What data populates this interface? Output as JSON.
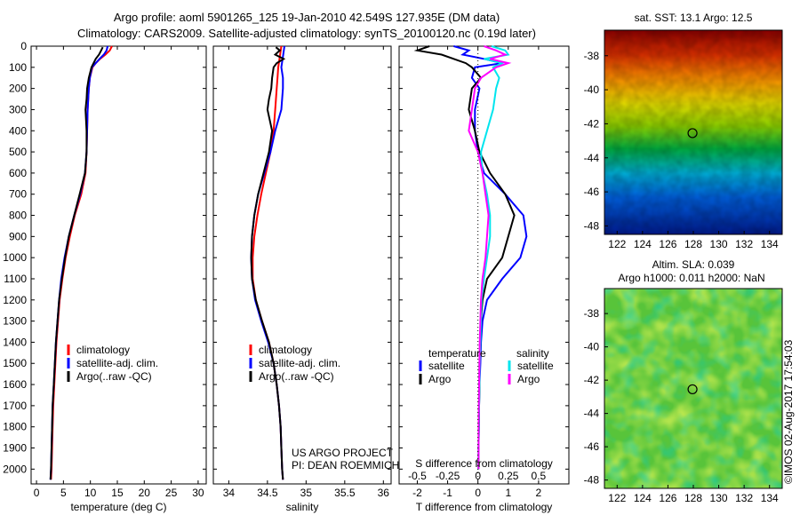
{
  "header": {
    "line1": "Argo profile: aoml 5901265_125 19-Jan-2010 42.549S 127.935E (DM data)",
    "line2": "Climatology: CARS2009. Satellite-adjusted climatology: synTS_20100120.nc (0.19d later)"
  },
  "credit": "©IMOS 02-Aug-2017 17:54:03",
  "colors": {
    "climatology": "#ff0000",
    "satellite": "#0000ff",
    "argo": "#000000",
    "salinity_satellite": "#00e5ee",
    "salinity_argo": "#ff00ff"
  },
  "chart_data": [
    {
      "id": "temperature",
      "type": "line",
      "xlabel": "temperature (deg C)",
      "ylabel": "",
      "xlim": [
        -1,
        31.5
      ],
      "ylim": [
        2070,
        0
      ],
      "xticks": [
        "0",
        "5",
        "10",
        "15",
        "20",
        "25",
        "30"
      ],
      "yticks": [
        "0",
        "100",
        "200",
        "300",
        "400",
        "500",
        "600",
        "700",
        "800",
        "900",
        "1000",
        "1100",
        "1200",
        "1300",
        "1400",
        "1500",
        "1600",
        "1700",
        "1800",
        "1900",
        "2000"
      ],
      "legend": [
        "climatology",
        "satellite-adj. clim.",
        "Argo(..raw -QC)"
      ],
      "legend_position": "lower-center",
      "series": [
        {
          "name": "climatology",
          "color": "#ff0000",
          "depth": [
            0,
            20,
            40,
            60,
            80,
            100,
            150,
            200,
            300,
            400,
            500,
            600,
            700,
            800,
            900,
            1000,
            1100,
            1200,
            1300,
            1400,
            1500,
            1600,
            1700,
            1800,
            1900,
            2000,
            2050
          ],
          "values": [
            14.0,
            13.6,
            12.8,
            11.8,
            11.0,
            10.4,
            9.9,
            9.7,
            9.5,
            9.4,
            9.3,
            9.1,
            8.3,
            7.1,
            6.2,
            5.4,
            4.8,
            4.3,
            4.0,
            3.7,
            3.5,
            3.3,
            3.1,
            3.0,
            2.9,
            2.8,
            2.7
          ]
        },
        {
          "name": "satellite-adj. clim.",
          "color": "#0000ff",
          "depth": [
            0,
            20,
            40,
            60,
            80,
            100,
            150,
            200,
            300,
            400,
            500,
            600,
            700,
            800,
            900,
            1000,
            1100,
            1200,
            1300,
            1400,
            1500,
            1600,
            1700,
            1800,
            1900,
            2000,
            2050
          ],
          "values": [
            13.2,
            13.0,
            12.5,
            11.7,
            11.0,
            10.3,
            9.9,
            9.7,
            9.5,
            9.4,
            9.3,
            9.0,
            8.1,
            7.0,
            6.0,
            5.2,
            4.6,
            4.2,
            3.9,
            3.6,
            3.4,
            3.2,
            3.0,
            2.9,
            2.8,
            2.7,
            2.6
          ]
        },
        {
          "name": "Argo(..raw -QC)",
          "color": "#000000",
          "depth": [
            5,
            20,
            40,
            60,
            80,
            100,
            150,
            200,
            250,
            300,
            400,
            500,
            600,
            700,
            800,
            900,
            1000,
            1100,
            1200,
            1300,
            1400,
            1500,
            1600,
            1700,
            1800,
            1900,
            2000,
            2050
          ],
          "values": [
            12.3,
            12.0,
            11.6,
            11.0,
            10.6,
            10.2,
            9.7,
            9.4,
            9.3,
            9.1,
            9.3,
            9.3,
            9.0,
            8.0,
            7.0,
            6.0,
            5.3,
            4.7,
            4.2,
            3.9,
            3.6,
            3.4,
            3.2,
            3.0,
            2.9,
            2.8,
            2.7,
            2.6
          ]
        }
      ]
    },
    {
      "id": "salinity",
      "type": "line",
      "xlabel": "salinity",
      "xlim": [
        33.8,
        36.1
      ],
      "ylim": [
        2070,
        0
      ],
      "xticks": [
        "34",
        "34.5",
        "35",
        "35.5",
        "36"
      ],
      "legend": [
        "climatology",
        "satellite-adj. clim.",
        "Argo(..raw -QC)"
      ],
      "legend_position": "lower-center",
      "annotation": [
        "US ARGO PROJECT",
        "PI: DEAN ROEMMICH"
      ],
      "series": [
        {
          "name": "climatology",
          "color": "#ff0000",
          "depth": [
            0,
            50,
            100,
            150,
            200,
            300,
            400,
            500,
            600,
            700,
            800,
            900,
            1000,
            1100,
            1200,
            1300,
            1400,
            1500,
            1600,
            1700,
            1800,
            1900,
            2000,
            2050
          ],
          "values": [
            34.68,
            34.66,
            34.64,
            34.63,
            34.62,
            34.6,
            34.58,
            34.54,
            34.48,
            34.42,
            34.37,
            34.33,
            34.31,
            34.31,
            34.35,
            34.43,
            34.52,
            34.58,
            34.62,
            34.65,
            34.67,
            34.68,
            34.69,
            34.7
          ]
        },
        {
          "name": "satellite-adj. clim.",
          "color": "#0000ff",
          "depth": [
            0,
            50,
            100,
            150,
            200,
            300,
            400,
            500,
            600,
            700,
            800,
            900,
            1000,
            1100,
            1200,
            1300,
            1400,
            1500,
            1600,
            1700,
            1800,
            1900,
            2000,
            2050
          ],
          "values": [
            34.72,
            34.7,
            34.68,
            34.7,
            34.7,
            34.68,
            34.6,
            34.54,
            34.46,
            34.38,
            34.33,
            34.3,
            34.29,
            34.3,
            34.34,
            34.42,
            34.51,
            34.58,
            34.62,
            34.65,
            34.67,
            34.68,
            34.69,
            34.7
          ]
        },
        {
          "name": "Argo(..raw -QC)",
          "color": "#000000",
          "depth": [
            5,
            20,
            40,
            60,
            80,
            100,
            150,
            200,
            250,
            300,
            400,
            500,
            600,
            700,
            800,
            900,
            1000,
            1100,
            1200,
            1300,
            1400,
            1500,
            1600,
            1700,
            1800,
            1900,
            2000,
            2050
          ],
          "values": [
            34.61,
            34.66,
            34.6,
            34.71,
            34.62,
            34.58,
            34.56,
            34.55,
            34.52,
            34.5,
            34.56,
            34.52,
            34.45,
            34.38,
            34.33,
            34.3,
            34.29,
            34.3,
            34.35,
            34.43,
            34.52,
            34.58,
            34.62,
            34.65,
            34.67,
            34.68,
            34.69,
            34.7
          ]
        }
      ]
    },
    {
      "id": "difference",
      "type": "line",
      "xlabel": "T difference from climatology",
      "xlabel_top": "S difference from climatology",
      "xlim": [
        -2.6,
        3.0
      ],
      "ylim": [
        2070,
        0
      ],
      "xticks": [
        "-2",
        "-1",
        "0",
        "1",
        "2"
      ],
      "s_ticks": [
        "-0.5",
        "-0.25",
        "0",
        "0.25",
        "0.5"
      ],
      "legend_temperature": [
        "temperature",
        "satellite",
        "Argo"
      ],
      "legend_salinity": [
        "salinity",
        "satellite",
        "Argo"
      ],
      "series": [
        {
          "name": "temperature satellite",
          "color": "#0000ff",
          "depth": [
            0,
            20,
            40,
            60,
            80,
            100,
            150,
            200,
            300,
            400,
            500,
            600,
            700,
            800,
            900,
            1000,
            1100,
            1200,
            1300,
            1400,
            1500,
            1600,
            1700,
            1800,
            1900,
            2000
          ],
          "values": [
            -0.8,
            -0.3,
            -0.5,
            0.2,
            0.8,
            -0.1,
            -0.2,
            0.05,
            -0.1,
            -0.1,
            0,
            0.2,
            0.9,
            1.5,
            1.6,
            1.4,
            0.8,
            0.3,
            0.15,
            0.1,
            0.08,
            0.05,
            0.04,
            0.03,
            0.02,
            0.02
          ]
        },
        {
          "name": "temperature Argo",
          "color": "#000000",
          "depth": [
            0,
            20,
            40,
            60,
            80,
            100,
            150,
            200,
            300,
            400,
            500,
            600,
            700,
            800,
            900,
            1000,
            1100,
            1200,
            1300,
            1400,
            1500,
            1600,
            1700,
            1800,
            1900,
            2000
          ],
          "values": [
            -1.6,
            -2.0,
            -1.2,
            -0.8,
            -0.4,
            -0.2,
            0.1,
            -0.2,
            -0.3,
            -0.1,
            0.05,
            0.4,
            0.9,
            1.2,
            1.0,
            0.8,
            0.3,
            0.15,
            0.1,
            0.08,
            0.05,
            0.05,
            0.04,
            0.03,
            0.02,
            0.02
          ]
        },
        {
          "name": "salinity satellite",
          "color": "#00e5ee",
          "depth": [
            0,
            20,
            40,
            60,
            80,
            100,
            150,
            200,
            300,
            400,
            500,
            600,
            700,
            800,
            900,
            1000,
            1100,
            1200,
            1300,
            1400,
            1500,
            1600,
            1700,
            1800,
            1900,
            2000
          ],
          "values": [
            0.45,
            0.9,
            1.0,
            0.2,
            0.8,
            0.5,
            0.7,
            0.6,
            0.5,
            0.3,
            0.1,
            0.15,
            0.3,
            0.4,
            0.4,
            0.3,
            0.2,
            0.12,
            0.1,
            0.08,
            0.06,
            0.05,
            0.04,
            0.03,
            0.02,
            0.02
          ]
        },
        {
          "name": "salinity Argo",
          "color": "#ff00ff",
          "depth": [
            0,
            20,
            40,
            60,
            80,
            100,
            150,
            200,
            300,
            400,
            500,
            600,
            700,
            800,
            900,
            1000,
            1100,
            1200,
            1300,
            1400,
            1500,
            1600,
            1700,
            1800,
            1900,
            2000
          ],
          "values": [
            0.2,
            0.6,
            0.9,
            0.4,
            1.0,
            0.6,
            0.1,
            -0.1,
            -0.2,
            -0.3,
            0.0,
            0.15,
            0.25,
            0.35,
            0.3,
            0.25,
            0.15,
            0.1,
            0.08,
            0.06,
            0.05,
            0.04,
            0.03,
            0.02,
            0.02,
            0.02
          ]
        }
      ]
    },
    {
      "id": "sst_map",
      "type": "heatmap",
      "title": "sat. SST: 13.1  Argo: 12.5",
      "xlim": [
        121,
        135
      ],
      "ylim": [
        -48.5,
        -36.5
      ],
      "xticks": [
        "122",
        "124",
        "126",
        "128",
        "130",
        "132",
        "134"
      ],
      "yticks": [
        "-38",
        "-40",
        "-42",
        "-44",
        "-46",
        "-48"
      ],
      "marker": {
        "lon": 127.935,
        "lat": -42.549
      }
    },
    {
      "id": "sla_map",
      "type": "heatmap",
      "title_line1": "Altim. SLA: 0.039",
      "title_line2": "Argo h1000: 0.011  h2000: NaN",
      "xlim": [
        121,
        135
      ],
      "ylim": [
        -48.5,
        -36.5
      ],
      "xticks": [
        "122",
        "124",
        "126",
        "128",
        "130",
        "132",
        "134"
      ],
      "yticks": [
        "-38",
        "-40",
        "-42",
        "-44",
        "-46",
        "-48"
      ],
      "marker": {
        "lon": 127.935,
        "lat": -42.549
      }
    }
  ]
}
